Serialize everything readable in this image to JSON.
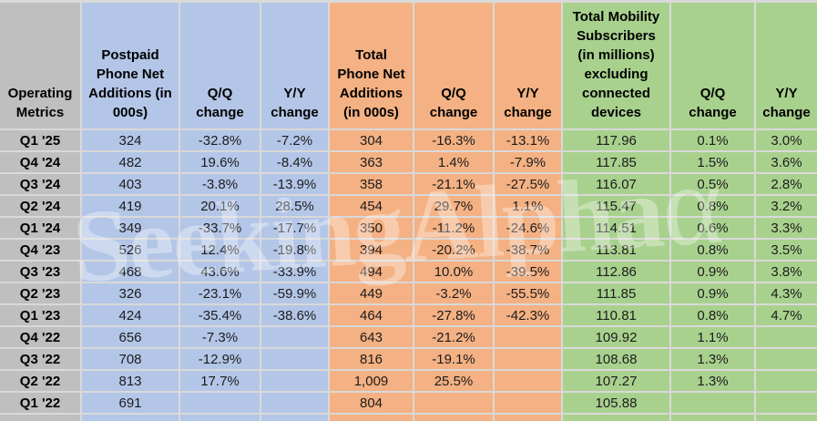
{
  "colors": {
    "gray": "#bfbfbf",
    "blue": "#b4c6e7",
    "orange": "#f4b183",
    "green": "#a9d18e",
    "grid": "#d9d9d9"
  },
  "watermark": {
    "text": "SeekingAlpha",
    "symbol": "α"
  },
  "chart_data": {
    "type": "table",
    "title": "Operating Metrics",
    "header": {
      "row_label": "Operating Metrics",
      "groups": [
        {
          "metric": "Postpaid Phone Net Additions (in 000s)",
          "qq": "Q/Q change",
          "yy": "Y/Y change"
        },
        {
          "metric": "Total Phone Net Additions (in 000s)",
          "qq": "Q/Q change",
          "yy": "Y/Y change"
        },
        {
          "metric": "Total Mobility Subscribers (in millions) excluding connected devices",
          "qq": "Q/Q change",
          "yy": "Y/Y change"
        }
      ]
    },
    "columns": [
      "Operating Metrics",
      "Postpaid Phone Net Additions (in 000s)",
      "Q/Q change",
      "Y/Y change",
      "Total Phone Net Additions (in 000s)",
      "Q/Q change",
      "Y/Y change",
      "Total Mobility Subscribers (in millions) excluding connected devices",
      "Q/Q change",
      "Y/Y change"
    ],
    "rows": [
      {
        "label": "Q1 '25",
        "cells": [
          "324",
          "-32.8%",
          "-7.2%",
          "304",
          "-16.3%",
          "-13.1%",
          "117.96",
          "0.1%",
          "3.0%"
        ]
      },
      {
        "label": "Q4 '24",
        "cells": [
          "482",
          "19.6%",
          "-8.4%",
          "363",
          "1.4%",
          "-7.9%",
          "117.85",
          "1.5%",
          "3.6%"
        ]
      },
      {
        "label": "Q3 '24",
        "cells": [
          "403",
          "-3.8%",
          "-13.9%",
          "358",
          "-21.1%",
          "-27.5%",
          "116.07",
          "0.5%",
          "2.8%"
        ]
      },
      {
        "label": "Q2 '24",
        "cells": [
          "419",
          "20.1%",
          "28.5%",
          "454",
          "29.7%",
          "1.1%",
          "115.47",
          "0.8%",
          "3.2%"
        ]
      },
      {
        "label": "Q1 '24",
        "cells": [
          "349",
          "-33.7%",
          "-17.7%",
          "350",
          "-11.2%",
          "-24.6%",
          "114.51",
          "0.6%",
          "3.3%"
        ]
      },
      {
        "label": "Q4 '23",
        "cells": [
          "526",
          "12.4%",
          "-19.8%",
          "394",
          "-20.2%",
          "-38.7%",
          "113.81",
          "0.8%",
          "3.5%"
        ]
      },
      {
        "label": "Q3 '23",
        "cells": [
          "468",
          "43.6%",
          "-33.9%",
          "494",
          "10.0%",
          "-39.5%",
          "112.86",
          "0.9%",
          "3.8%"
        ]
      },
      {
        "label": "Q2 '23",
        "cells": [
          "326",
          "-23.1%",
          "-59.9%",
          "449",
          "-3.2%",
          "-55.5%",
          "111.85",
          "0.9%",
          "4.3%"
        ]
      },
      {
        "label": "Q1 '23",
        "cells": [
          "424",
          "-35.4%",
          "-38.6%",
          "464",
          "-27.8%",
          "-42.3%",
          "110.81",
          "0.8%",
          "4.7%"
        ]
      },
      {
        "label": "Q4 '22",
        "cells": [
          "656",
          "-7.3%",
          "",
          "643",
          "-21.2%",
          "",
          "109.92",
          "1.1%",
          ""
        ]
      },
      {
        "label": "Q3 '22",
        "cells": [
          "708",
          "-12.9%",
          "",
          "816",
          "-19.1%",
          "",
          "108.68",
          "1.3%",
          ""
        ]
      },
      {
        "label": "Q2 '22",
        "cells": [
          "813",
          "17.7%",
          "",
          "1,009",
          "25.5%",
          "",
          "107.27",
          "1.3%",
          ""
        ]
      },
      {
        "label": "Q1 '22",
        "cells": [
          "691",
          "",
          "",
          "804",
          "",
          "",
          "105.88",
          "",
          ""
        ]
      }
    ]
  }
}
